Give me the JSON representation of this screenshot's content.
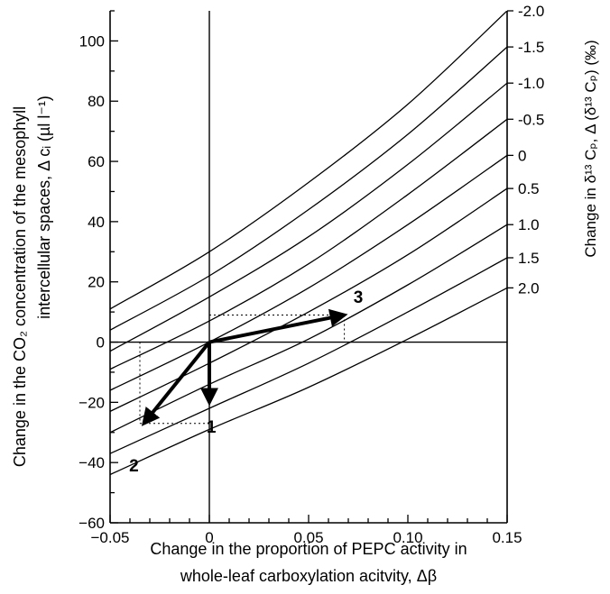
{
  "chart_data": {
    "type": "line",
    "xlabel_line1": "Change in the proportion of PEPC activity in",
    "xlabel_line2": "whole-leaf carboxylation acitvity, Δβ",
    "ylabel_line1": "Change in the CO₂ concentration of the mesophyll",
    "ylabel_line2": "intercellular spaces,  Δ cᵢ (µl l⁻¹)",
    "y2label": "Change in δ¹³ Cₚ,  Δ (δ¹³ Cₚ) (‰)",
    "xlim": [
      -0.05,
      0.15
    ],
    "ylim": [
      -60,
      110
    ],
    "x_ticks": [
      -0.05,
      0,
      0.05,
      0.1,
      0.15
    ],
    "x_tick_labels": [
      "−0.05",
      "0",
      "0.05",
      "0.10",
      "0.15"
    ],
    "y_ticks": [
      -60,
      -40,
      -20,
      0,
      20,
      40,
      60,
      80,
      100
    ],
    "y_tick_labels": [
      "−60",
      "−40",
      "−20",
      "0",
      "20",
      "40",
      "60",
      "80",
      "100"
    ],
    "iso_lines": [
      {
        "label": "-2.0",
        "points": [
          [
            -0.05,
            11
          ],
          [
            0,
            30
          ],
          [
            0.05,
            53
          ],
          [
            0.1,
            79
          ],
          [
            0.15,
            110
          ]
        ]
      },
      {
        "label": "-1.5",
        "points": [
          [
            -0.05,
            4
          ],
          [
            0,
            22
          ],
          [
            0.05,
            44
          ],
          [
            0.1,
            69
          ],
          [
            0.15,
            98
          ]
        ]
      },
      {
        "label": "-1.0",
        "points": [
          [
            -0.05,
            -3
          ],
          [
            0,
            15
          ],
          [
            0.05,
            35
          ],
          [
            0.1,
            59
          ],
          [
            0.15,
            86
          ]
        ]
      },
      {
        "label": "-0.5",
        "points": [
          [
            -0.05,
            -9
          ],
          [
            0,
            7
          ],
          [
            0.05,
            26
          ],
          [
            0.1,
            49
          ],
          [
            0.15,
            74
          ]
        ]
      },
      {
        "label": "0",
        "points": [
          [
            -0.05,
            -16
          ],
          [
            0,
            0
          ],
          [
            0.05,
            18
          ],
          [
            0.1,
            39
          ],
          [
            0.15,
            62
          ]
        ]
      },
      {
        "label": "0.5",
        "points": [
          [
            -0.05,
            -23
          ],
          [
            0,
            -7
          ],
          [
            0.05,
            10
          ],
          [
            0.1,
            29
          ],
          [
            0.15,
            51
          ]
        ]
      },
      {
        "label": "1.0",
        "points": [
          [
            -0.05,
            -30
          ],
          [
            0,
            -14
          ],
          [
            0.05,
            1
          ],
          [
            0.1,
            19
          ],
          [
            0.15,
            39
          ]
        ]
      },
      {
        "label": "1.5",
        "points": [
          [
            -0.05,
            -37
          ],
          [
            0,
            -22
          ],
          [
            0.05,
            -7
          ],
          [
            0.1,
            10
          ],
          [
            0.15,
            28
          ]
        ]
      },
      {
        "label": "2.0",
        "points": [
          [
            -0.05,
            -44
          ],
          [
            0,
            -29
          ],
          [
            0.05,
            -15
          ],
          [
            0.1,
            1
          ],
          [
            0.15,
            18
          ]
        ]
      }
    ],
    "arrows": [
      {
        "label": "1",
        "from": [
          0,
          0
        ],
        "to": [
          0,
          -20
        ],
        "label_at": [
          0.001,
          -30
        ]
      },
      {
        "label": "2",
        "from": [
          0,
          0
        ],
        "to": [
          -0.033,
          -27
        ],
        "label_at": [
          -0.038,
          -43
        ]
      },
      {
        "label": "3",
        "from": [
          0,
          0
        ],
        "to": [
          0.068,
          9
        ],
        "label_at": [
          0.075,
          13
        ]
      }
    ],
    "guides": [
      {
        "from": [
          -0.035,
          0
        ],
        "to": [
          -0.035,
          -27
        ]
      },
      {
        "from": [
          -0.035,
          -27
        ],
        "to": [
          0,
          -27
        ]
      },
      {
        "from": [
          0,
          9
        ],
        "to": [
          0.068,
          9
        ]
      },
      {
        "from": [
          0.068,
          9
        ],
        "to": [
          0.068,
          0
        ]
      }
    ]
  }
}
